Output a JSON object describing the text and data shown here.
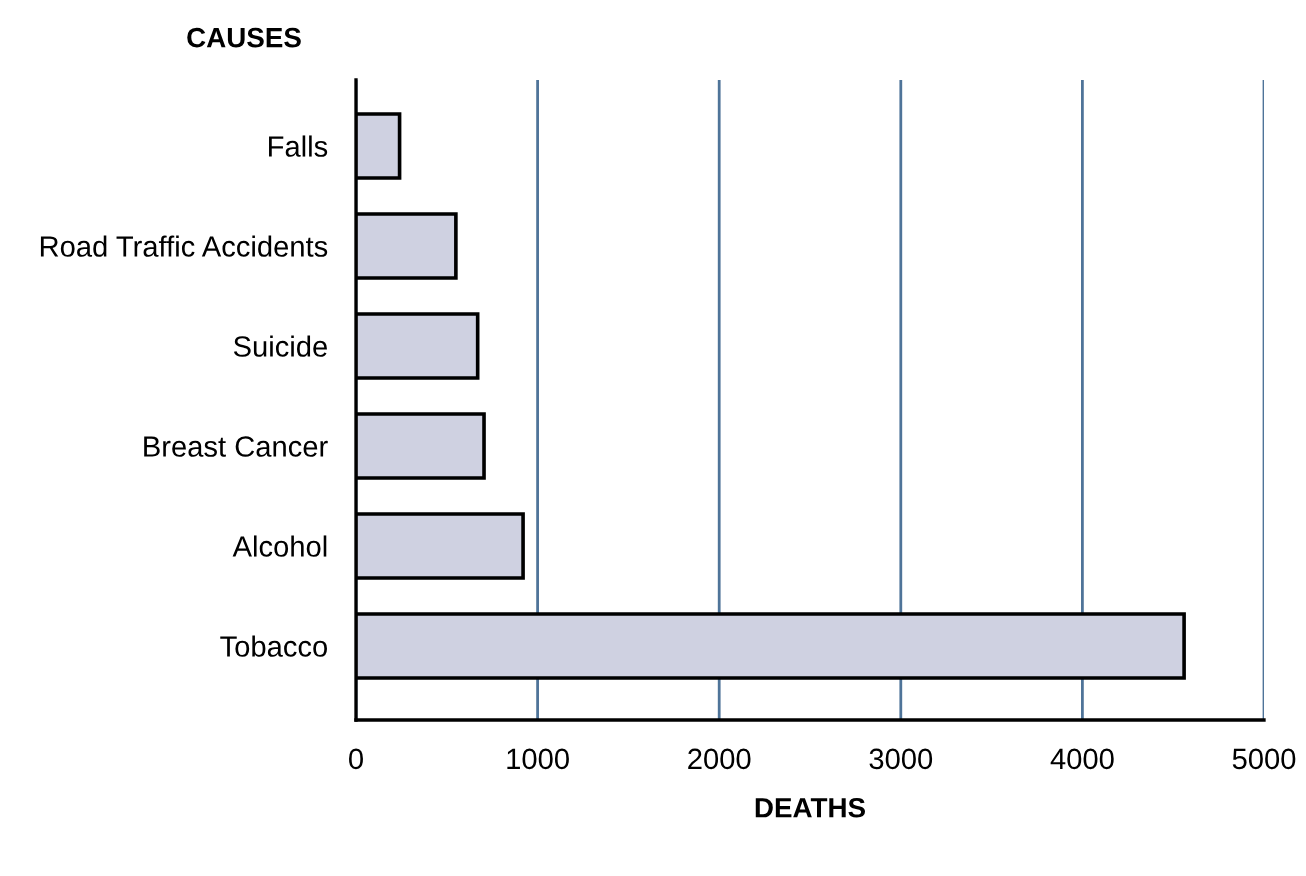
{
  "chart_data": {
    "type": "bar",
    "orientation": "horizontal",
    "ylabel": "CAUSES",
    "xlabel": "DEATHS",
    "categories": [
      "Falls",
      "Road Traffic Accidents",
      "Suicide",
      "Breast Cancer",
      "Alcohol",
      "Tobacco"
    ],
    "values": [
      240,
      550,
      670,
      705,
      920,
      4560
    ],
    "color": "#cfd1e1",
    "xlim": [
      0,
      5000
    ],
    "xticks": [
      0,
      1000,
      2000,
      3000,
      4000,
      5000
    ],
    "grid": "x"
  }
}
